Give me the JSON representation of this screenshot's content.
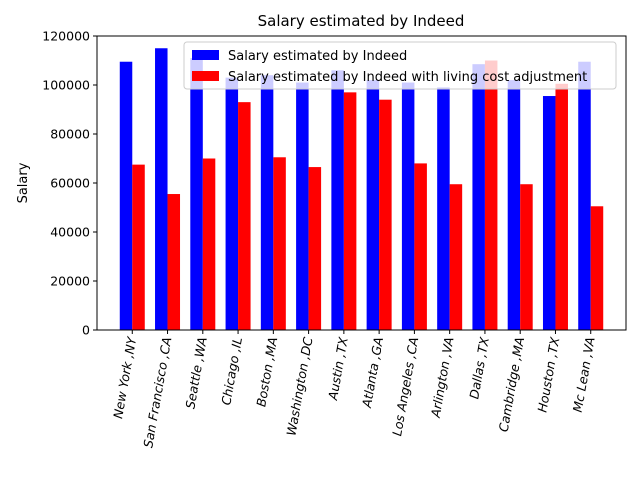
{
  "chart_data": {
    "type": "bar",
    "title": "Salary estimated by Indeed",
    "xlabel": "",
    "ylabel": "Salary",
    "ylim": [
      0,
      120000
    ],
    "yticks": [
      "0",
      "20000",
      "40000",
      "60000",
      "80000",
      "100000",
      "120000"
    ],
    "legend_position": "top-right",
    "grid": false,
    "categories": [
      "New York ,NY",
      "San Francisco ,CA",
      "Seattle ,WA",
      "Chicago ,IL",
      "Boston ,MA",
      "Washington ,DC",
      "Austin ,TX",
      "Atlanta ,GA",
      "Los Angeles ,CA",
      "Arlington ,VA",
      "Dallas ,TX",
      "Cambridge ,MA",
      "Houston ,TX",
      "Mc Lean ,VA"
    ],
    "series": [
      {
        "name": "Salary estimated by Indeed",
        "color": "#0000ff",
        "values": [
          109500,
          115000,
          111000,
          103000,
          104000,
          101000,
          106000,
          102000,
          101000,
          99000,
          108500,
          102000,
          95500,
          109500
        ]
      },
      {
        "name": "Salary estimated by Indeed with living cost adjustment",
        "color": "#ff0000",
        "values": [
          67500,
          55500,
          70000,
          93000,
          70500,
          66500,
          97000,
          94000,
          68000,
          59500,
          110000,
          59500,
          100500,
          50500
        ]
      }
    ]
  }
}
